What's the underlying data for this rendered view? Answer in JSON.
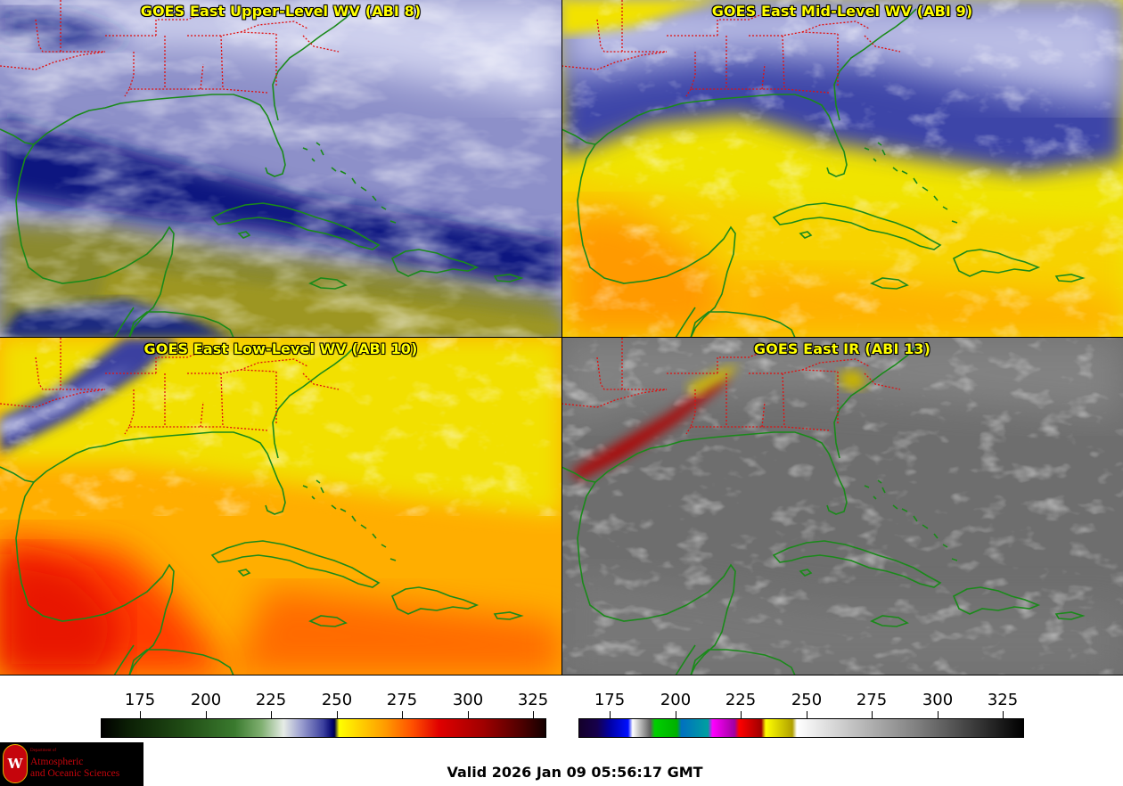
{
  "panels": [
    {
      "title": "GOES East Upper-Level WV (ABI 8)"
    },
    {
      "title": "GOES East Mid-Level WV (ABI 9)"
    },
    {
      "title": "GOES East Low-Level WV (ABI 10)"
    },
    {
      "title": "GOES East IR (ABI 13)"
    }
  ],
  "colorbars": {
    "wv": {
      "ticks": [
        "175",
        "200",
        "225",
        "250",
        "275",
        "300",
        "325"
      ],
      "min": 160,
      "max": 330
    },
    "ir": {
      "ticks": [
        "175",
        "200",
        "225",
        "250",
        "275",
        "300",
        "325"
      ],
      "min": 163,
      "max": 333
    }
  },
  "colors": {
    "coastline": "#1a8a1a",
    "state_borders": "#e01010",
    "title": "#ffff00"
  },
  "logo": {
    "dept": "Department of",
    "line1": "Atmospheric",
    "line2": "and Oceanic Sciences",
    "seal": "W"
  },
  "valid_time": "Valid 2026 Jan 09 05:56:17 GMT"
}
